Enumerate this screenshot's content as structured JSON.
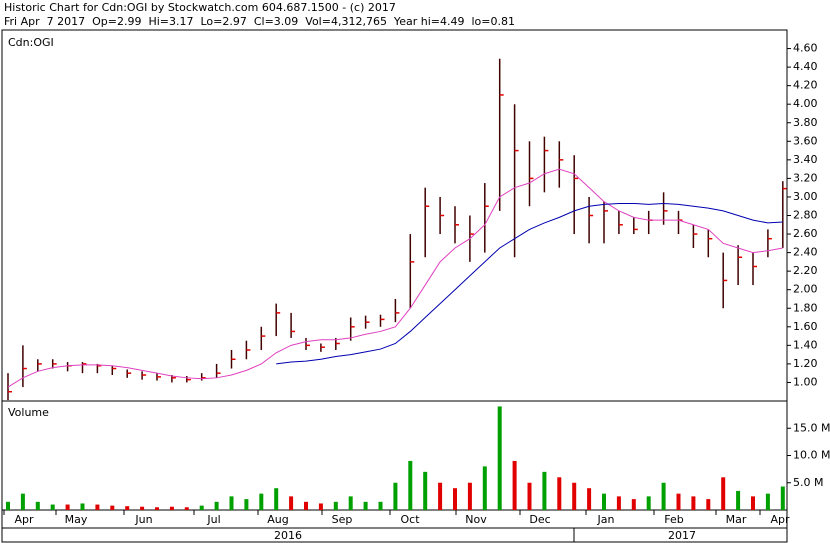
{
  "chart_data": {
    "type": "ohlc",
    "title": "Historic Chart for Cdn:OGI by Stockwatch.com 604.687.1500 - (c) 2017",
    "subtitle": "Fri Apr  7 2017  Op=2.99  Hi=3.17  Lo=2.97  Cl=3.09  Vol=4,312,765  Year hi=4.49  lo=0.81",
    "symbol_label": "Cdn:OGI",
    "volume_label": "Volume",
    "months": [
      "Apr",
      "May",
      "Jun",
      "Jul",
      "Aug",
      "Sep",
      "Oct",
      "Nov",
      "Dec",
      "Jan",
      "Feb",
      "Mar",
      "Apr"
    ],
    "years": [
      "2016",
      "2017"
    ],
    "high": [
      1.1,
      1.4,
      1.25,
      1.25,
      1.22,
      1.22,
      1.2,
      1.18,
      1.14,
      1.12,
      1.1,
      1.08,
      1.07,
      1.1,
      1.2,
      1.35,
      1.45,
      1.6,
      1.85,
      1.75,
      1.48,
      1.42,
      1.48,
      1.7,
      1.72,
      1.73,
      1.9,
      2.6,
      3.1,
      3.0,
      2.9,
      2.8,
      3.15,
      4.49,
      4.0,
      3.6,
      3.65,
      3.6,
      3.45,
      3.0,
      2.95,
      2.85,
      2.78,
      2.85,
      3.05,
      2.85,
      2.7,
      2.65,
      2.4,
      2.48,
      2.4,
      2.65,
      3.17
    ],
    "low": [
      0.81,
      0.95,
      1.12,
      1.15,
      1.12,
      1.1,
      1.1,
      1.08,
      1.05,
      1.03,
      1.02,
      1.0,
      1.0,
      1.02,
      1.05,
      1.15,
      1.25,
      1.35,
      1.5,
      1.48,
      1.35,
      1.33,
      1.35,
      1.45,
      1.58,
      1.6,
      1.65,
      1.8,
      2.35,
      2.6,
      2.5,
      2.3,
      2.4,
      2.85,
      2.35,
      2.9,
      3.05,
      3.1,
      2.6,
      2.5,
      2.5,
      2.6,
      2.6,
      2.6,
      2.7,
      2.6,
      2.45,
      2.35,
      1.8,
      2.05,
      2.05,
      2.35,
      2.45
    ],
    "close": [
      0.9,
      1.15,
      1.2,
      1.2,
      1.18,
      1.2,
      1.18,
      1.15,
      1.1,
      1.08,
      1.06,
      1.05,
      1.03,
      1.05,
      1.1,
      1.25,
      1.35,
      1.5,
      1.75,
      1.55,
      1.4,
      1.38,
      1.42,
      1.6,
      1.65,
      1.68,
      1.75,
      2.3,
      2.9,
      2.8,
      2.7,
      2.6,
      2.9,
      4.1,
      3.5,
      3.2,
      3.5,
      3.4,
      3.2,
      2.8,
      2.85,
      2.7,
      2.65,
      2.75,
      2.85,
      2.75,
      2.6,
      2.55,
      2.1,
      2.35,
      2.25,
      2.55,
      3.09
    ],
    "volume": [
      1500000,
      3000000,
      1500000,
      1000000,
      1000000,
      1200000,
      1000000,
      800000,
      700000,
      600000,
      500000,
      600000,
      500000,
      800000,
      1500000,
      2500000,
      2000000,
      3000000,
      4000000,
      2500000,
      1500000,
      1200000,
      1500000,
      2500000,
      1500000,
      1500000,
      5000000,
      9000000,
      7000000,
      5000000,
      4000000,
      5000000,
      8000000,
      19000000,
      9000000,
      5000000,
      7000000,
      6000000,
      5000000,
      4000000,
      3000000,
      2500000,
      2000000,
      2500000,
      5000000,
      3000000,
      2500000,
      2000000,
      6000000,
      3500000,
      2500000,
      3000000,
      4312765
    ],
    "series": [
      {
        "color": "#e040c0",
        "values": [
          0.95,
          1.05,
          1.12,
          1.16,
          1.18,
          1.19,
          1.19,
          1.18,
          1.16,
          1.13,
          1.1,
          1.07,
          1.05,
          1.04,
          1.05,
          1.08,
          1.13,
          1.2,
          1.32,
          1.4,
          1.44,
          1.46,
          1.46,
          1.48,
          1.52,
          1.55,
          1.6,
          1.8,
          2.05,
          2.3,
          2.45,
          2.55,
          2.7,
          3.0,
          3.1,
          3.15,
          3.25,
          3.3,
          3.25,
          3.1,
          2.95,
          2.85,
          2.78,
          2.75,
          2.75,
          2.75,
          2.7,
          2.65,
          2.5,
          2.45,
          2.4,
          2.42,
          2.45
        ]
      },
      {
        "color": "#0000b0",
        "values": [
          null,
          null,
          null,
          null,
          null,
          null,
          null,
          null,
          null,
          null,
          null,
          null,
          null,
          null,
          null,
          null,
          null,
          null,
          1.2,
          1.22,
          1.23,
          1.25,
          1.28,
          1.3,
          1.33,
          1.36,
          1.42,
          1.55,
          1.7,
          1.85,
          2.0,
          2.15,
          2.3,
          2.45,
          2.55,
          2.65,
          2.72,
          2.78,
          2.85,
          2.9,
          2.92,
          2.93,
          2.93,
          2.92,
          2.93,
          2.92,
          2.9,
          2.88,
          2.85,
          2.8,
          2.75,
          2.72,
          2.73
        ]
      }
    ],
    "up_color": "#00a000",
    "down_color": "#e00000",
    "bar_color": "#400000",
    "close_color": "#e00000",
    "ylim": [
      0.8,
      4.8
    ],
    "yticks": [
      {
        "value": 1.0,
        "label": "1.00"
      },
      {
        "value": 1.2,
        "label": "1.20"
      },
      {
        "value": 1.4,
        "label": "1.40"
      },
      {
        "value": 1.6,
        "label": "1.60"
      },
      {
        "value": 1.8,
        "label": "1.80"
      },
      {
        "value": 2.0,
        "label": "2.00"
      },
      {
        "value": 2.2,
        "label": "2.20"
      },
      {
        "value": 2.4,
        "label": "2.40"
      },
      {
        "value": 2.6,
        "label": "2.60"
      },
      {
        "value": 2.8,
        "label": "2.80"
      },
      {
        "value": 3.0,
        "label": "3.00"
      },
      {
        "value": 3.2,
        "label": "3.20"
      },
      {
        "value": 3.4,
        "label": "3.40"
      },
      {
        "value": 3.6,
        "label": "3.60"
      },
      {
        "value": 3.8,
        "label": "3.80"
      },
      {
        "value": 4.0,
        "label": "4.00"
      },
      {
        "value": 4.2,
        "label": "4.20"
      },
      {
        "value": 4.4,
        "label": "4.40"
      },
      {
        "value": 4.6,
        "label": "4.60"
      }
    ],
    "y2lim": [
      0,
      20000000
    ],
    "y2ticks": [
      {
        "value": 5000000,
        "label": "5.0 M"
      },
      {
        "value": 10000000,
        "label": "10.0 M"
      },
      {
        "value": 15000000,
        "label": "15.0 M"
      }
    ]
  }
}
